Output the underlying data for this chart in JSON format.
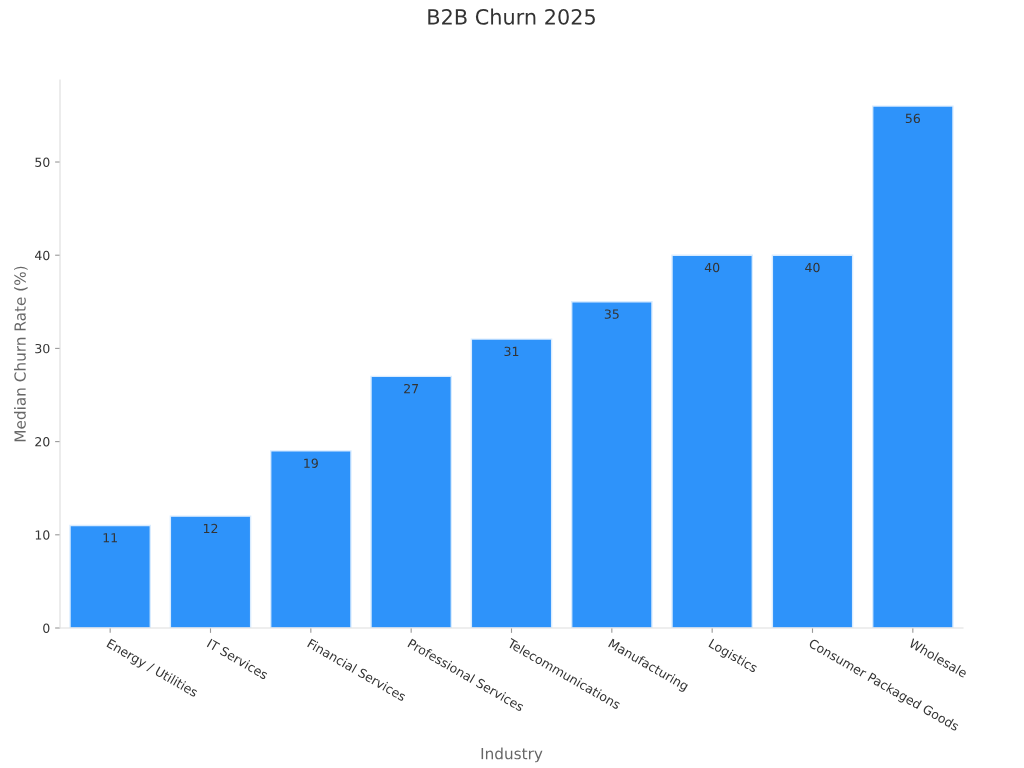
{
  "chart_data": {
    "type": "bar",
    "title": "B2B Churn 2025",
    "xlabel": "Industry",
    "ylabel": "Median Churn Rate (%)",
    "categories": [
      "Energy / Utilities",
      "IT Services",
      "Financial Services",
      "Professional Services",
      "Telecommunications",
      "Manufacturing",
      "Logistics",
      "Consumer Packaged Goods",
      "Wholesale"
    ],
    "values": [
      11,
      12,
      19,
      27,
      31,
      35,
      40,
      40,
      56
    ],
    "color": "#2e93fa",
    "ylim": [
      0,
      58.8
    ],
    "yticks": [
      0,
      10,
      20,
      30,
      40,
      50
    ],
    "grid": false,
    "legend": false,
    "data_labels": true
  }
}
